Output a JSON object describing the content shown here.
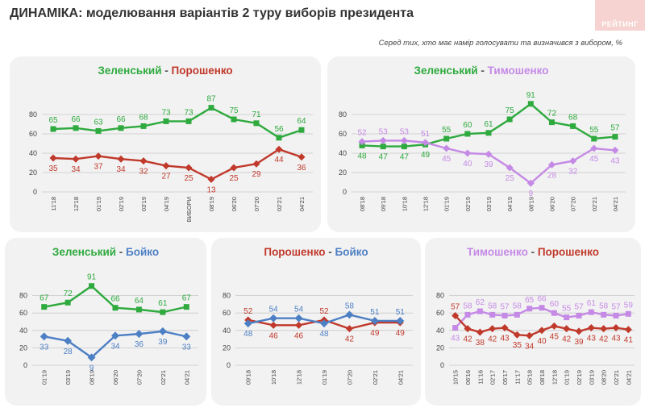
{
  "header": {
    "title": "ДИНАМІКА: моделювання варіантів 2 туру виборів президента",
    "subtitle": "Серед тих, хто має намір голосувати та визначився з вибором, %",
    "logo": "РЕЙТИНГ"
  },
  "colors": {
    "green": "#2eaa3e",
    "red": "#c0392b",
    "purple": "#c58ae6",
    "blue": "#4d7fc4",
    "grid": "#c8c8c8"
  },
  "chart_data": [
    {
      "type": "line",
      "title_a": "Зеленський",
      "title_sep": " - ",
      "title_b": "Порошенко",
      "categories": [
        "11'18",
        "12'18",
        "01'19",
        "02'19",
        "03'19",
        "04'19",
        "ВИБОРИ",
        "08'19",
        "06'20",
        "07'20",
        "02'21",
        "04'21"
      ],
      "ylim": [
        0,
        100
      ],
      "yticks": [
        "0",
        "20",
        "40",
        "60",
        "80"
      ],
      "series": [
        {
          "name": "Зеленський",
          "color": "green",
          "label_pos": "above",
          "values": [
            65,
            66,
            63,
            66,
            68,
            73,
            73,
            87,
            75,
            71,
            56,
            64
          ]
        },
        {
          "name": "Порошенко",
          "color": "red",
          "label_pos": "below",
          "values": [
            35,
            34,
            37,
            34,
            32,
            27,
            25,
            13,
            25,
            29,
            44,
            36
          ]
        }
      ]
    },
    {
      "type": "line",
      "title_a": "Зеленський",
      "title_sep": " - ",
      "title_b": "Тимошенко",
      "categories": [
        "08'18",
        "09'18",
        "10'18",
        "12'18",
        "01'19",
        "02'19",
        "03'19",
        "04'19",
        "08'19",
        "06'20",
        "07'20",
        "02'21",
        "04'21"
      ],
      "ylim": [
        0,
        100
      ],
      "yticks": [
        "0",
        "20",
        "40",
        "60",
        "80"
      ],
      "series": [
        {
          "name": "Зеленський",
          "color": "green",
          "label_pos": "above",
          "alt_below_first": 4,
          "values": [
            48,
            47,
            47,
            49,
            55,
            60,
            61,
            75,
            91,
            72,
            68,
            55,
            57
          ]
        },
        {
          "name": "Тимошенко",
          "color": "purple",
          "label_pos": "below",
          "alt_above_first": 4,
          "values": [
            52,
            53,
            53,
            51,
            45,
            40,
            39,
            25,
            9,
            28,
            32,
            45,
            43
          ]
        }
      ]
    },
    {
      "type": "line",
      "title_a": "Зеленський",
      "title_sep": " - ",
      "title_b": "Бойко",
      "categories": [
        "01'19",
        "03'19",
        "08'19",
        "06'20",
        "07'20",
        "02'21",
        "04'21"
      ],
      "ylim": [
        0,
        100
      ],
      "yticks": [
        "0",
        "20",
        "40",
        "60",
        "80"
      ],
      "series": [
        {
          "name": "Зеленський",
          "color": "green",
          "label_pos": "above",
          "values": [
            67,
            72,
            91,
            66,
            64,
            61,
            67
          ]
        },
        {
          "name": "Бойко",
          "color": "blue",
          "label_pos": "below",
          "values": [
            33,
            28,
            9,
            34,
            36,
            39,
            33
          ]
        }
      ]
    },
    {
      "type": "line",
      "title_a": "Порошенко",
      "title_sep": " - ",
      "title_b": "Бойко",
      "categories": [
        "09'18",
        "10'18",
        "12'18",
        "01'19",
        "07'20",
        "02'21",
        "04'21"
      ],
      "ylim": [
        0,
        100
      ],
      "yticks": [
        "0",
        "20",
        "40",
        "60",
        "80"
      ],
      "series": [
        {
          "name": "Порошенко",
          "color": "red",
          "label_pos": "above",
          "label_pos_list": [
            "above",
            "below",
            "below",
            "above",
            "below",
            "below",
            "below"
          ],
          "values": [
            52,
            46,
            46,
            52,
            42,
            49,
            49
          ]
        },
        {
          "name": "Бойко",
          "color": "blue",
          "label_pos": "below",
          "label_pos_list": [
            "below",
            "above",
            "above",
            "below",
            "above",
            "above",
            "above"
          ],
          "values": [
            48,
            54,
            54,
            48,
            58,
            51,
            51
          ]
        }
      ]
    },
    {
      "type": "line",
      "title_a": "Тимошенко",
      "title_sep": " - ",
      "title_b": "Порошенко",
      "categories": [
        "10'15",
        "06'16",
        "11'16",
        "02'17",
        "05'17",
        "11'17",
        "05'18",
        "08'18",
        "12'18",
        "01'19",
        "02'19",
        "03'19",
        "08'20",
        "02'21",
        "04'21"
      ],
      "ylim": [
        0,
        100
      ],
      "yticks": [
        "0",
        "20",
        "40",
        "60",
        "80"
      ],
      "series": [
        {
          "name": "Тимошенко",
          "color": "purple",
          "label_pos": "above",
          "label_pos_list": [
            "below",
            "above",
            "above",
            "above",
            "above",
            "above",
            "above",
            "above",
            "above",
            "above",
            "above",
            "above",
            "above",
            "above",
            "above"
          ],
          "values": [
            43,
            58,
            62,
            58,
            57,
            58,
            65,
            66,
            60,
            55,
            57,
            61,
            58,
            57,
            59
          ]
        },
        {
          "name": "Порошенко",
          "color": "red",
          "label_pos": "below",
          "label_pos_list": [
            "above",
            "below",
            "below",
            "below",
            "below",
            "below",
            "below",
            "below",
            "below",
            "below",
            "below",
            "below",
            "below",
            "below",
            "below"
          ],
          "values": [
            57,
            42,
            38,
            42,
            43,
            35,
            34,
            40,
            45,
            42,
            39,
            43,
            42,
            43,
            41
          ]
        }
      ]
    }
  ]
}
